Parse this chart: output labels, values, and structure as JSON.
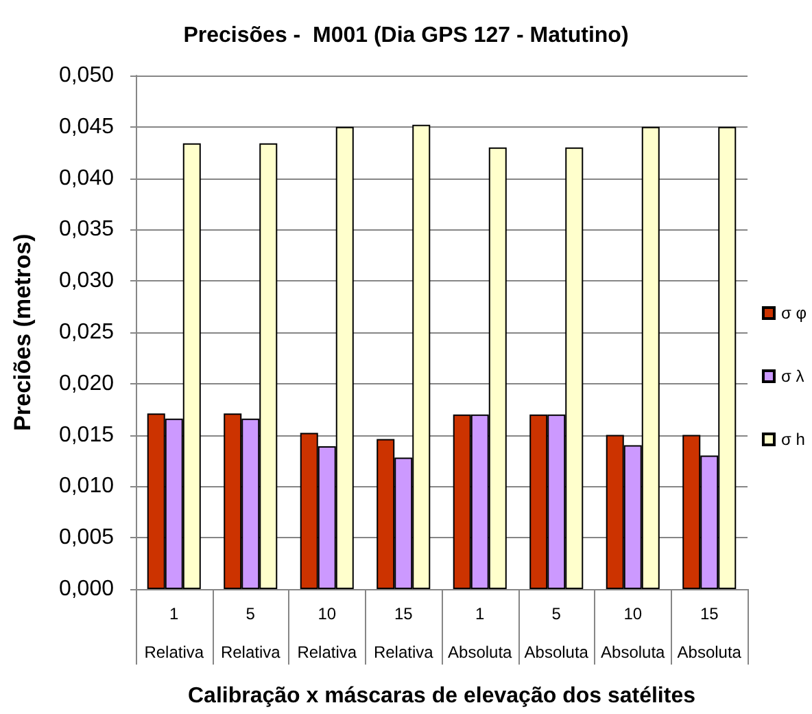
{
  "chart_data": {
    "type": "bar",
    "title": "Precisões -  M001 (Dia GPS 127 - Matutino)",
    "xlabel": "Calibração x máscaras de elevação dos satélites",
    "ylabel": "Preciões (metros)",
    "categories": [
      "1\nRelativa",
      "5\nRelativa",
      "10\nRelativa",
      "15\nRelativa",
      "1\nAbsoluta",
      "5\nAbsoluta",
      "10\nAbsoluta",
      "15\nAbsoluta"
    ],
    "series": [
      {
        "name": "σ φ",
        "color": "#cc3300",
        "values": [
          0.0171,
          0.0171,
          0.0152,
          0.0146,
          0.017,
          0.017,
          0.015,
          0.015
        ]
      },
      {
        "name": "σ λ",
        "color": "#cc99ff",
        "values": [
          0.0166,
          0.0166,
          0.0139,
          0.0128,
          0.017,
          0.017,
          0.014,
          0.013
        ]
      },
      {
        "name": "σ h",
        "color": "#ffffcc",
        "values": [
          0.0434,
          0.0434,
          0.045,
          0.0452,
          0.043,
          0.043,
          0.045,
          0.045
        ]
      }
    ],
    "ylim": [
      0,
      0.05
    ],
    "yticks": [
      {
        "value": 0,
        "label": "0,000"
      },
      {
        "value": 0.005,
        "label": "0,005"
      },
      {
        "value": 0.01,
        "label": "0,010"
      },
      {
        "value": 0.015,
        "label": "0,015"
      },
      {
        "value": 0.02,
        "label": "0,020"
      },
      {
        "value": 0.025,
        "label": "0,025"
      },
      {
        "value": 0.03,
        "label": "0,030"
      },
      {
        "value": 0.035,
        "label": "0,035"
      },
      {
        "value": 0.04,
        "label": "0,040"
      },
      {
        "value": 0.045,
        "label": "0,045"
      },
      {
        "value": 0.05,
        "label": "0,050"
      }
    ],
    "grid": "y",
    "legend": "right"
  }
}
